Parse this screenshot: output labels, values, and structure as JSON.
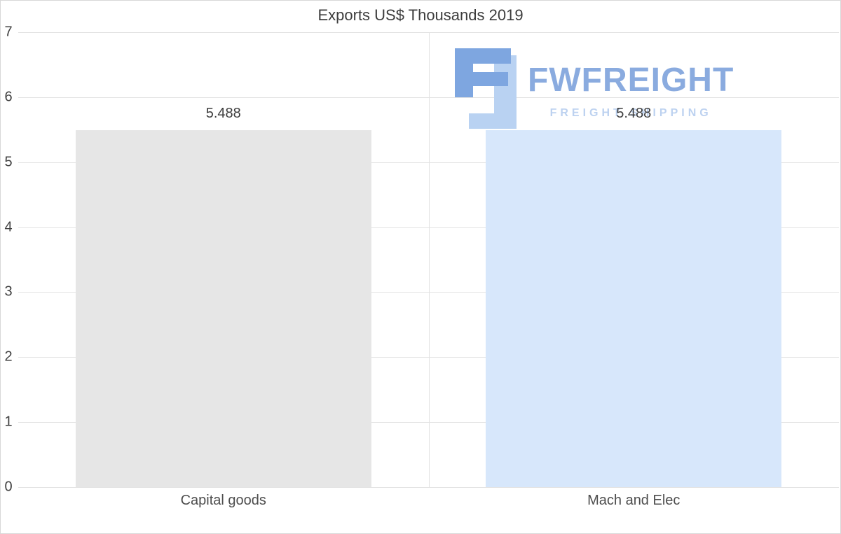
{
  "title": "Exports US$ Thousands 2019",
  "watermark": {
    "brand": "FWFREIGHT",
    "tagline": "FREIGHT SHIPPING",
    "brand_color": "#8aabdf",
    "tagline_color": "#bdd2f0",
    "logo_dark_color": "#7ea6e0",
    "logo_light_color": "#b9d2f2"
  },
  "chart_data": {
    "type": "bar",
    "title": "Exports US$ Thousands 2019",
    "categories": [
      "Capital goods",
      "Mach and Elec"
    ],
    "values": [
      5.488,
      5.488
    ],
    "value_labels": [
      "5.488",
      "5.488"
    ],
    "bar_colors": [
      "#e6e6e6",
      "#d7e7fb"
    ],
    "xlabel": "",
    "ylabel": "",
    "ylim": [
      0,
      7
    ],
    "yticks": [
      0,
      1,
      2,
      3,
      4,
      5,
      6,
      7
    ],
    "grid": true,
    "legend": false
  }
}
